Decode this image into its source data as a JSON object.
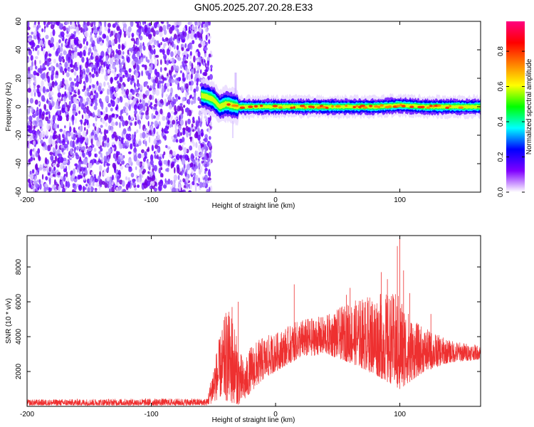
{
  "title": "GN05.2025.207.20.28.E33",
  "chart_data": [
    {
      "type": "heatmap",
      "xlabel": "Height of straight line (km)",
      "ylabel": "Frequency (Hz)",
      "xlim": [
        -200,
        165
      ],
      "ylim": [
        -60,
        60
      ],
      "xticks": [
        -200,
        -100,
        0,
        100
      ],
      "yticks": [
        -60,
        -40,
        -20,
        0,
        20,
        40,
        60
      ],
      "colorbar": {
        "label": "Normalized spectral amplitude",
        "range": [
          0,
          0.97
        ],
        "ticks": [
          "0.0",
          "0.2",
          "0.4",
          "0.6",
          "0.8"
        ],
        "tick_values": [
          0,
          0.2,
          0.4,
          0.6,
          0.8
        ],
        "colors": [
          "#ffffff",
          "#8000ff",
          "#0000ff",
          "#00ffff",
          "#00ff00",
          "#ffff00",
          "#ff8000",
          "#ff0000",
          "#ff0080"
        ]
      },
      "noise_region_x": [
        -200,
        -55
      ],
      "signal_track": [
        {
          "x": -60,
          "y": 8
        },
        {
          "x": -55,
          "y": 7
        },
        {
          "x": -50,
          "y": 5
        },
        {
          "x": -45,
          "y": 0
        },
        {
          "x": -40,
          "y": 2
        },
        {
          "x": -35,
          "y": 1
        },
        {
          "x": -30,
          "y": 0
        },
        {
          "x": -20,
          "y": 0
        },
        {
          "x": 0,
          "y": 0
        },
        {
          "x": 20,
          "y": 0
        },
        {
          "x": 40,
          "y": 0
        },
        {
          "x": 60,
          "y": 0
        },
        {
          "x": 80,
          "y": 0
        },
        {
          "x": 100,
          "y": 1
        },
        {
          "x": 120,
          "y": 0
        },
        {
          "x": 140,
          "y": 0
        },
        {
          "x": 165,
          "y": 0
        }
      ]
    },
    {
      "type": "line",
      "xlabel": "Height of straight line (km)",
      "ylabel": "SNR (10 * v/v)",
      "xlim": [
        -200,
        165
      ],
      "ylim": [
        0,
        9800
      ],
      "xticks": [
        -200,
        -100,
        0,
        100
      ],
      "yticks": [
        2000,
        4000,
        6000,
        8000
      ],
      "color": "#ee3030",
      "envelope": [
        {
          "x": -200,
          "low": 50,
          "high": 400
        },
        {
          "x": -100,
          "low": 50,
          "high": 450
        },
        {
          "x": -55,
          "low": 50,
          "high": 450
        },
        {
          "x": -50,
          "low": 200,
          "high": 2500
        },
        {
          "x": -45,
          "low": 500,
          "high": 4000
        },
        {
          "x": -40,
          "low": 300,
          "high": 5500
        },
        {
          "x": -35,
          "low": 200,
          "high": 5500
        },
        {
          "x": -30,
          "low": 100,
          "high": 3500
        },
        {
          "x": -25,
          "low": 300,
          "high": 2500
        },
        {
          "x": -20,
          "low": 800,
          "high": 3500
        },
        {
          "x": -10,
          "low": 1500,
          "high": 4000
        },
        {
          "x": 0,
          "low": 2000,
          "high": 4200
        },
        {
          "x": 20,
          "low": 2800,
          "high": 5000
        },
        {
          "x": 40,
          "low": 3000,
          "high": 5200
        },
        {
          "x": 60,
          "low": 2500,
          "high": 6000
        },
        {
          "x": 80,
          "low": 1800,
          "high": 6500
        },
        {
          "x": 100,
          "low": 1000,
          "high": 6500
        },
        {
          "x": 110,
          "low": 1500,
          "high": 5000
        },
        {
          "x": 120,
          "low": 2000,
          "high": 4500
        },
        {
          "x": 140,
          "low": 2500,
          "high": 3800
        },
        {
          "x": 165,
          "low": 2700,
          "high": 3500
        }
      ],
      "spikes": [
        {
          "x": -35,
          "y": 5700
        },
        {
          "x": -30,
          "y": 6000
        },
        {
          "x": 15,
          "y": 7000
        },
        {
          "x": 57,
          "y": 6400
        },
        {
          "x": 60,
          "y": 6800
        },
        {
          "x": 85,
          "y": 7700
        },
        {
          "x": 90,
          "y": 7300
        },
        {
          "x": 98,
          "y": 9200
        },
        {
          "x": 100,
          "y": 9800
        },
        {
          "x": 103,
          "y": 7800
        },
        {
          "x": 108,
          "y": 6500
        },
        {
          "x": 125,
          "y": 5300
        }
      ]
    }
  ]
}
